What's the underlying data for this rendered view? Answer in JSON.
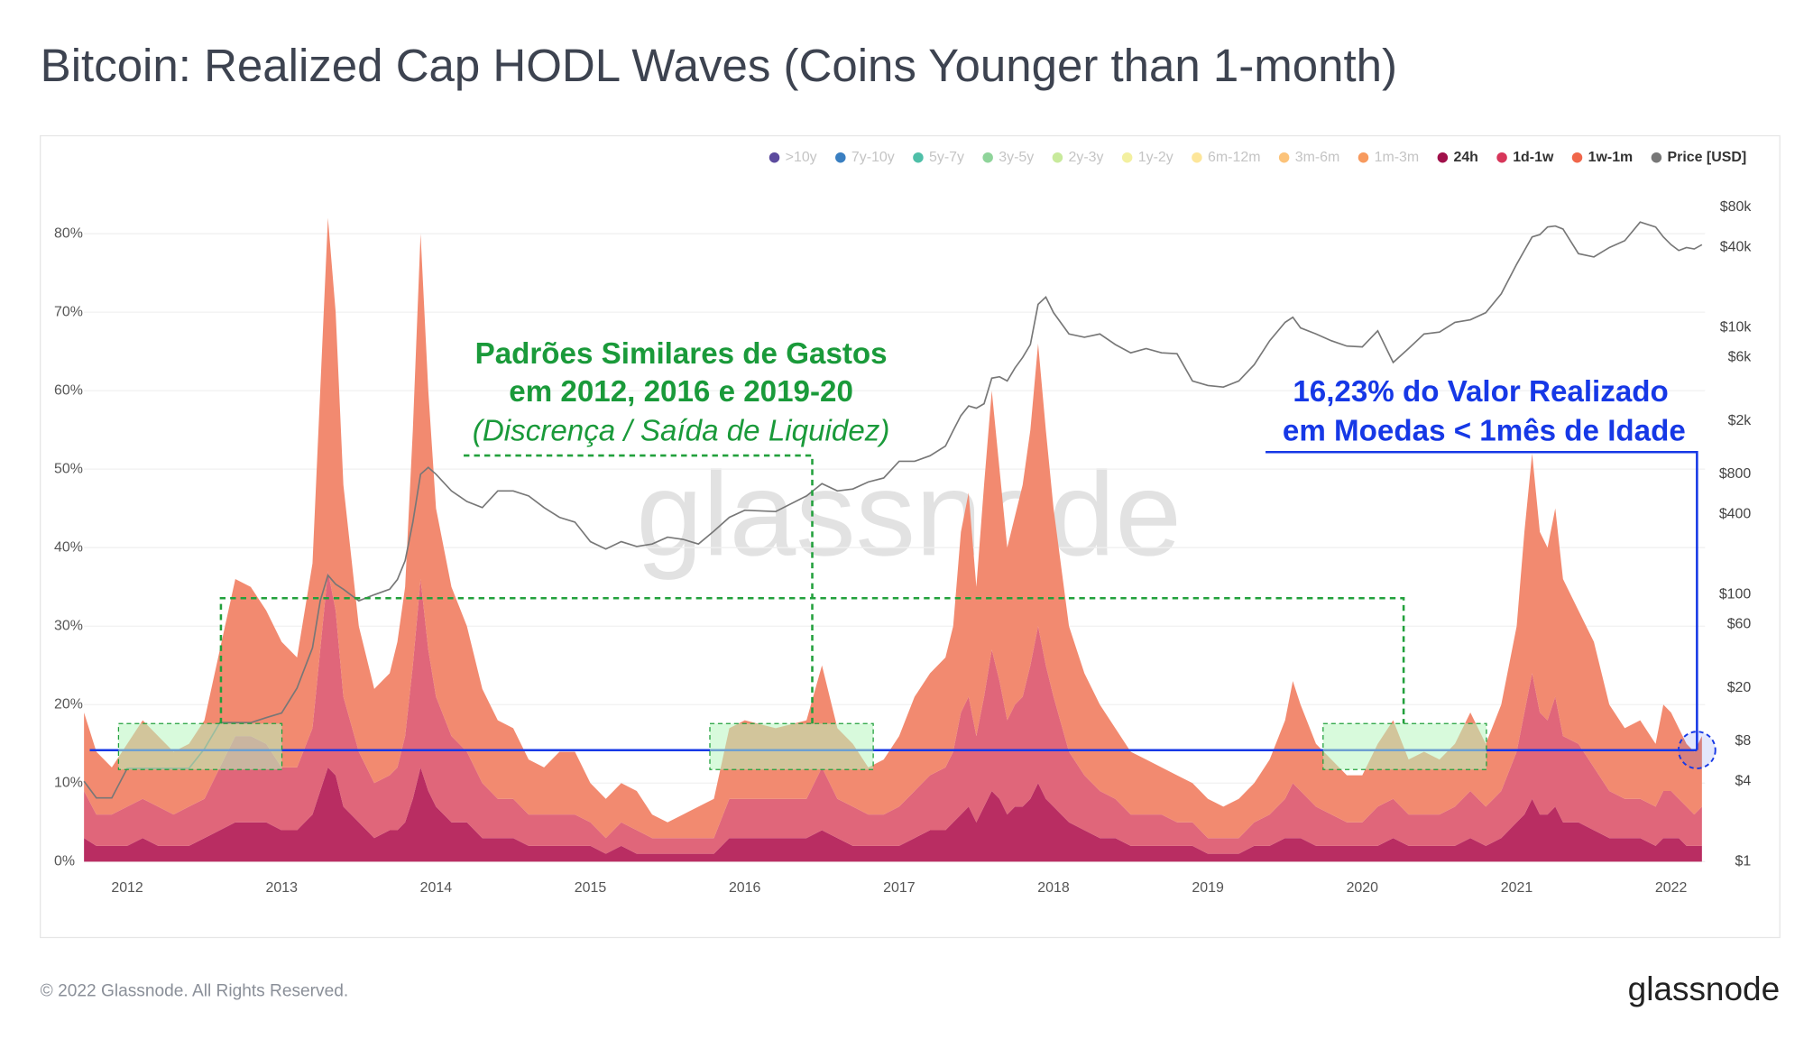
{
  "chart_data": {
    "type": "area",
    "stacked": true,
    "title": "Bitcoin: Realized Cap HODL Waves (Coins Younger than 1-month)",
    "watermark": "glassnode",
    "footer": "© 2022 Glassnode. All Rights Reserved.",
    "logo": "glassnode",
    "grid": true,
    "legend": "top-right",
    "xlim": [
      2011.72,
      2022.22
    ],
    "xticks": [
      2012,
      2013,
      2014,
      2015,
      2016,
      2017,
      2018,
      2019,
      2020,
      2021,
      2022
    ],
    "ylim": [
      0,
      85
    ],
    "yticks": [
      {
        "value": 0,
        "label": "0%"
      },
      {
        "value": 10,
        "label": "10%"
      },
      {
        "value": 20,
        "label": "20%"
      },
      {
        "value": 30,
        "label": "30%"
      },
      {
        "value": 40,
        "label": "40%"
      },
      {
        "value": 50,
        "label": "50%"
      },
      {
        "value": 60,
        "label": "60%"
      },
      {
        "value": 70,
        "label": "70%"
      },
      {
        "value": 80,
        "label": "80%"
      }
    ],
    "y2lim": [
      1,
      100000
    ],
    "y2log": true,
    "y2ticks": [
      {
        "value": 1,
        "label": "$1"
      },
      {
        "value": 4,
        "label": "$4"
      },
      {
        "value": 8,
        "label": "$8"
      },
      {
        "value": 20,
        "label": "$20"
      },
      {
        "value": 60,
        "label": "$60"
      },
      {
        "value": 100,
        "label": "$100"
      },
      {
        "value": 400,
        "label": "$400"
      },
      {
        "value": 800,
        "label": "$800"
      },
      {
        "value": 2000,
        "label": "$2k"
      },
      {
        "value": 6000,
        "label": "$6k"
      },
      {
        "value": 10000,
        "label": "$10k"
      },
      {
        "value": 40000,
        "label": "$40k"
      },
      {
        "value": 80000,
        "label": "$80k"
      }
    ],
    "reference_line": 14.2,
    "annotations": [
      {
        "text": "Padrões Similares de Gastos",
        "color": "#1a9a3a",
        "style": "bold"
      },
      {
        "text": "em 2012, 2016 e 2019-20",
        "color": "#1a9a3a",
        "style": "bold"
      },
      {
        "text": "(Discrença / Saída de Liquidez)",
        "color": "#1a9a3a",
        "style": "italic"
      },
      {
        "text": "16,23% do Valor Realizado",
        "color": "#1638e6",
        "style": "bold"
      },
      {
        "text": "em Moedas < 1mês de Idade",
        "color": "#1638e6",
        "style": "bold"
      }
    ],
    "x": [
      2011.72,
      2011.8,
      2011.9,
      2012,
      2012.1,
      2012.2,
      2012.3,
      2012.4,
      2012.5,
      2012.6,
      2012.7,
      2012.8,
      2012.9,
      2013,
      2013.1,
      2013.2,
      2013.25,
      2013.3,
      2013.35,
      2013.4,
      2013.5,
      2013.6,
      2013.7,
      2013.75,
      2013.8,
      2013.85,
      2013.9,
      2013.95,
      2014,
      2014.1,
      2014.2,
      2014.3,
      2014.4,
      2014.5,
      2014.6,
      2014.7,
      2014.8,
      2014.9,
      2015,
      2015.1,
      2015.2,
      2015.3,
      2015.4,
      2015.5,
      2015.6,
      2015.7,
      2015.8,
      2015.9,
      2016,
      2016.2,
      2016.4,
      2016.5,
      2016.6,
      2016.7,
      2016.8,
      2016.9,
      2017,
      2017.1,
      2017.2,
      2017.3,
      2017.35,
      2017.4,
      2017.45,
      2017.5,
      2017.55,
      2017.6,
      2017.65,
      2017.7,
      2017.75,
      2017.8,
      2017.85,
      2017.9,
      2017.95,
      2018,
      2018.1,
      2018.2,
      2018.3,
      2018.4,
      2018.5,
      2018.6,
      2018.7,
      2018.8,
      2018.9,
      2019,
      2019.1,
      2019.2,
      2019.3,
      2019.4,
      2019.5,
      2019.55,
      2019.6,
      2019.7,
      2019.8,
      2019.9,
      2020,
      2020.1,
      2020.2,
      2020.3,
      2020.4,
      2020.5,
      2020.6,
      2020.7,
      2020.8,
      2020.9,
      2021,
      2021.05,
      2021.1,
      2021.15,
      2021.2,
      2021.25,
      2021.3,
      2021.4,
      2021.5,
      2021.6,
      2021.7,
      2021.8,
      2021.9,
      2021.95,
      2022,
      2022.05,
      2022.1,
      2022.15,
      2022.2
    ],
    "series": [
      {
        "name": ">10y",
        "color": "#5c4b9e",
        "visible": false
      },
      {
        "name": "7y-10y",
        "color": "#3a7fc1",
        "visible": false
      },
      {
        "name": "5y-7y",
        "color": "#4fbfa8",
        "visible": false
      },
      {
        "name": "3y-5y",
        "color": "#8fd49a",
        "visible": false
      },
      {
        "name": "2y-3y",
        "color": "#c8ea9c",
        "visible": false
      },
      {
        "name": "1y-2y",
        "color": "#f3f0a0",
        "visible": false
      },
      {
        "name": "6m-12m",
        "color": "#fde69a",
        "visible": false
      },
      {
        "name": "3m-6m",
        "color": "#fcc37a",
        "visible": false
      },
      {
        "name": "1m-3m",
        "color": "#f79a5e",
        "visible": false
      },
      {
        "name": "24h",
        "color": "#a0104a",
        "visible": true,
        "fill": "#b92d62",
        "values": [
          3,
          2,
          2,
          2,
          3,
          2,
          2,
          2,
          3,
          4,
          5,
          5,
          5,
          4,
          4,
          6,
          9,
          12,
          11,
          7,
          5,
          3,
          4,
          4,
          5,
          8,
          12,
          9,
          7,
          5,
          5,
          3,
          3,
          3,
          2,
          2,
          2,
          2,
          2,
          1,
          2,
          1,
          1,
          1,
          1,
          1,
          1,
          3,
          3,
          3,
          3,
          4,
          3,
          2,
          2,
          2,
          2,
          3,
          4,
          4,
          5,
          6,
          7,
          5,
          7,
          9,
          8,
          6,
          7,
          7,
          8,
          10,
          8,
          7,
          5,
          4,
          3,
          3,
          2,
          2,
          2,
          2,
          2,
          1,
          1,
          1,
          2,
          2,
          3,
          3,
          3,
          2,
          2,
          2,
          2,
          2,
          3,
          2,
          2,
          2,
          2,
          3,
          2,
          3,
          5,
          6,
          8,
          6,
          6,
          7,
          5,
          5,
          4,
          3,
          3,
          3,
          2,
          3,
          3,
          3,
          2,
          2,
          2
        ]
      },
      {
        "name": "1d-1w",
        "color": "#d7365a",
        "visible": true,
        "fill": "#e0667a",
        "values": [
          6,
          4,
          4,
          5,
          5,
          5,
          4,
          5,
          5,
          8,
          11,
          11,
          10,
          8,
          8,
          11,
          18,
          25,
          21,
          14,
          9,
          7,
          7,
          8,
          11,
          17,
          24,
          18,
          14,
          11,
          9,
          7,
          5,
          5,
          4,
          4,
          4,
          4,
          3,
          2,
          3,
          3,
          2,
          2,
          2,
          2,
          2,
          5,
          5,
          5,
          5,
          8,
          5,
          5,
          4,
          4,
          5,
          6,
          7,
          8,
          9,
          13,
          14,
          11,
          14,
          18,
          15,
          12,
          13,
          14,
          17,
          20,
          17,
          14,
          9,
          7,
          6,
          5,
          4,
          4,
          4,
          3,
          3,
          2,
          2,
          2,
          3,
          4,
          5,
          7,
          6,
          5,
          4,
          3,
          3,
          5,
          5,
          4,
          4,
          4,
          5,
          6,
          5,
          6,
          9,
          13,
          16,
          13,
          12,
          14,
          11,
          10,
          8,
          6,
          5,
          5,
          5,
          6,
          6,
          5,
          5,
          4,
          5
        ]
      },
      {
        "name": "1w-1m",
        "color": "#f0664a",
        "visible": true,
        "fill": "#f28a70",
        "values": [
          10,
          8,
          6,
          8,
          10,
          9,
          8,
          8,
          10,
          15,
          20,
          19,
          17,
          16,
          14,
          21,
          33,
          45,
          38,
          27,
          16,
          12,
          13,
          16,
          19,
          30,
          44,
          33,
          24,
          19,
          16,
          12,
          10,
          9,
          7,
          6,
          8,
          8,
          5,
          5,
          5,
          5,
          3,
          2,
          3,
          4,
          5,
          9,
          10,
          9,
          10,
          13,
          9,
          8,
          6,
          7,
          9,
          12,
          13,
          14,
          16,
          23,
          26,
          19,
          27,
          33,
          27,
          22,
          24,
          27,
          30,
          36,
          30,
          24,
          16,
          13,
          11,
          9,
          8,
          7,
          6,
          6,
          5,
          5,
          4,
          5,
          5,
          7,
          10,
          13,
          11,
          8,
          7,
          6,
          6,
          8,
          10,
          7,
          8,
          7,
          8,
          10,
          8,
          11,
          16,
          23,
          28,
          23,
          22,
          24,
          20,
          17,
          16,
          11,
          9,
          10,
          8,
          11,
          10,
          9,
          8,
          8,
          9
        ]
      },
      {
        "name": "Price [USD]",
        "color": "#777777",
        "visible": true,
        "axis": "y2",
        "values": [
          4,
          3,
          3,
          5,
          5,
          5,
          5,
          5,
          7,
          11,
          11,
          11,
          12,
          13,
          20,
          40,
          90,
          140,
          120,
          110,
          90,
          100,
          110,
          130,
          180,
          350,
          800,
          900,
          800,
          600,
          500,
          450,
          600,
          600,
          550,
          450,
          380,
          350,
          250,
          220,
          250,
          230,
          240,
          270,
          260,
          240,
          300,
          380,
          430,
          420,
          550,
          680,
          600,
          620,
          700,
          750,
          1000,
          1000,
          1100,
          1300,
          1700,
          2200,
          2600,
          2500,
          2700,
          4200,
          4300,
          4000,
          5000,
          6000,
          7500,
          15000,
          17000,
          13000,
          9000,
          8500,
          9000,
          7500,
          6500,
          7000,
          6500,
          6400,
          4000,
          3700,
          3600,
          4000,
          5300,
          8000,
          11000,
          12000,
          10000,
          9000,
          8000,
          7300,
          7200,
          9500,
          5500,
          7000,
          9000,
          9300,
          11000,
          11500,
          13000,
          18000,
          30000,
          38000,
          48000,
          50000,
          57000,
          58000,
          55000,
          36000,
          34000,
          40000,
          45000,
          62000,
          57000,
          48000,
          42000,
          38000,
          40000,
          39000,
          42000
        ]
      }
    ]
  }
}
